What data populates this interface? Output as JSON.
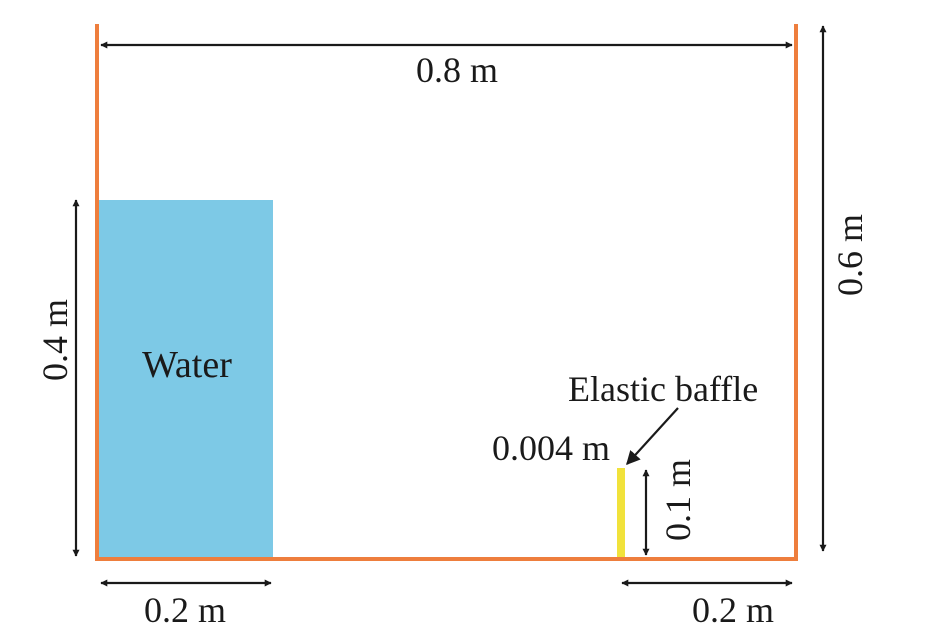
{
  "diagram": {
    "colors": {
      "tank_wall": "#EE7E3D",
      "water": "#7DC9E6",
      "baffle": "#F1E23B",
      "dimension": "#1a1a1a",
      "background": "#ffffff"
    },
    "labels": {
      "tank_width": "0.8 m",
      "tank_height": "0.6 m",
      "water_height": "0.4 m",
      "water_width": "0.2 m",
      "water": "Water",
      "baffle_name": "Elastic baffle",
      "baffle_thickness": "0.004 m",
      "baffle_height": "0.1 m",
      "baffle_offset": "0.2 m"
    }
  }
}
